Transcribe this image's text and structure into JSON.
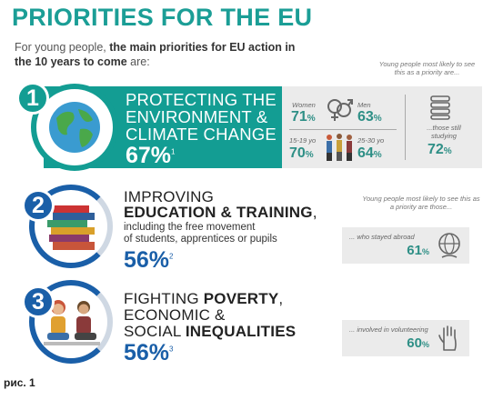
{
  "header": {
    "title": "PRIORITIES FOR THE EU",
    "intro_plain": "For young people, ",
    "intro_bold": "the main priorities for EU action in the 10 years to come",
    "intro_end": " are:"
  },
  "priority1": {
    "number": "1",
    "title_lines": [
      "PROTECTING THE",
      "ENVIRONMENT &",
      "CLIMATE CHANGE"
    ],
    "percent": "67%",
    "footnote": "1",
    "hint": "Young people most likely to see this as a priority are...",
    "women_label": "Women",
    "women_value": "71",
    "men_label": "Men",
    "men_value": "63",
    "age1_label": "15-19 yo",
    "age1_value": "70",
    "age2_label": "25-30 yo",
    "age2_value": "64",
    "studying_label": "...those still studying",
    "studying_value": "72",
    "pct_sign": "%"
  },
  "priority2": {
    "number": "2",
    "title_thin": "IMPROVING",
    "title_bold": "EDUCATION & TRAINING",
    "title_comma": ",",
    "sub1": "including the free movement",
    "sub2": "of students, apprentices or pupils",
    "percent": "56%",
    "footnote": "2",
    "hint": "Young people most likely to see this as a priority are those...",
    "box_label": "... who stayed abroad",
    "box_value": "61",
    "pct_sign": "%"
  },
  "priority3": {
    "number": "3",
    "line1_thin": "FIGHTING ",
    "line1_bold": "POVERTY",
    "line1_end": ",",
    "line2": "ECONOMIC &",
    "line3_thin": "SOCIAL ",
    "line3_bold": "INEQUALITIES",
    "percent": "56%",
    "footnote": "3",
    "box_label": "... involved in volunteering",
    "box_value": "60",
    "pct_sign": "%"
  },
  "caption": "рис. 1",
  "colors": {
    "teal": "#139d93",
    "blue": "#1a5fa8",
    "grey_box": "#ebebeb"
  },
  "icons": [
    "globe-icon",
    "gender-symbols-icon",
    "people-icon",
    "book-stack-icon",
    "globe-hand-icon",
    "raised-hand-icon"
  ]
}
